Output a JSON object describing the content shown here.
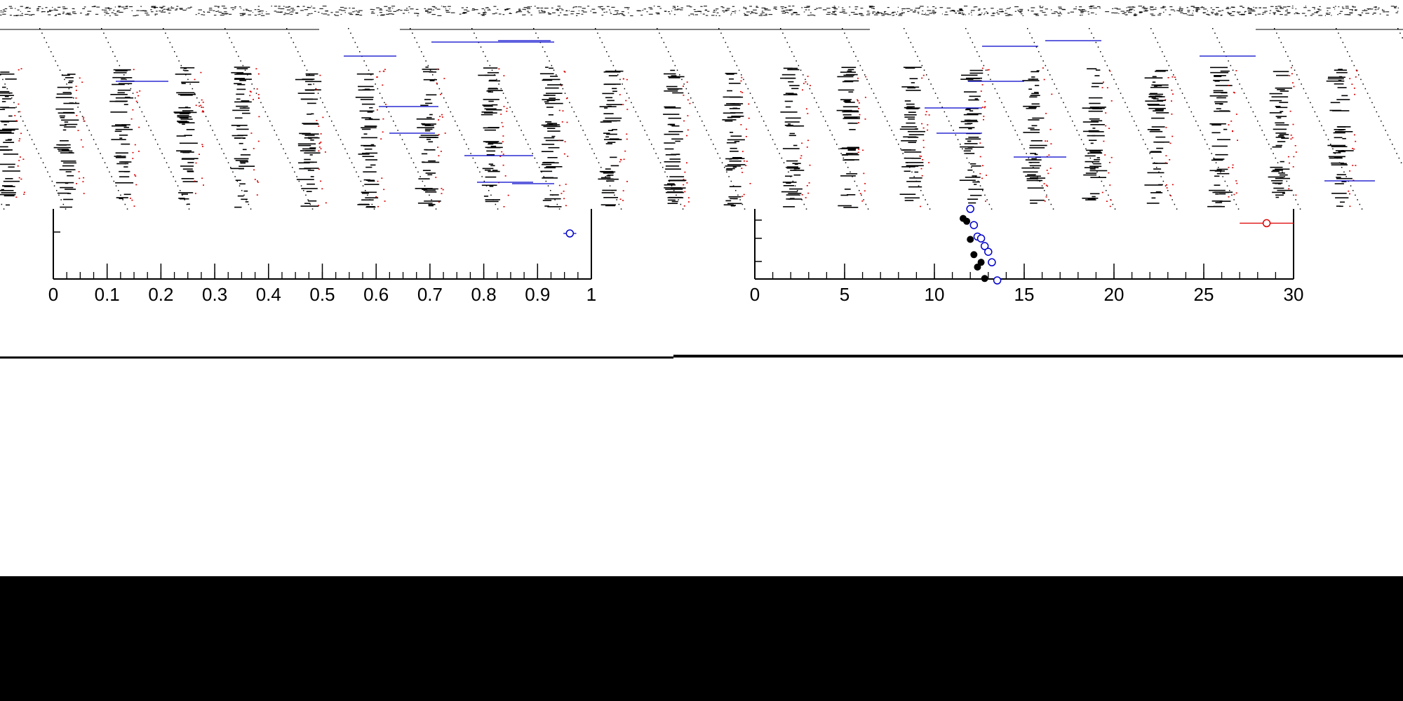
{
  "colors": {
    "background": "#ffffff",
    "frame": "#000000",
    "series_black": "#000000",
    "series_blue": "#0000cc",
    "series_red": "#dd0000",
    "bottom_band": "#000000"
  },
  "chart_data": [
    {
      "type": "scatter",
      "title": "",
      "xlabel": "",
      "ylabel": "",
      "xlim": [
        0,
        1
      ],
      "x_ticks": [
        "0",
        "0.1",
        "0.2",
        "0.3",
        "0.4",
        "0.5",
        "0.6",
        "0.7",
        "0.8",
        "0.9",
        "1"
      ],
      "x_tick_values": [
        0,
        0.1,
        0.2,
        0.3,
        0.4,
        0.5,
        0.6,
        0.7,
        0.8,
        0.9,
        1
      ],
      "minor_tick_step": 0.025,
      "grid": false,
      "legend": "none",
      "series": [
        {
          "marker": "open-circle",
          "color": "#0000cc",
          "points": [
            {
              "x": 0.96,
              "xerr": 0.012,
              "row": 2
            }
          ]
        }
      ]
    },
    {
      "type": "scatter",
      "title": "",
      "xlabel": "",
      "ylabel": "",
      "xlim": [
        0,
        30
      ],
      "x_ticks": [
        "0",
        "5",
        "10",
        "15",
        "20",
        "25",
        "30"
      ],
      "x_tick_values": [
        0,
        5,
        10,
        15,
        20,
        25,
        30
      ],
      "minor_tick_step": 1,
      "grid": false,
      "legend": "none",
      "series": [
        {
          "marker": "filled-circle",
          "color": "#000000",
          "points": [
            {
              "x": 11.6,
              "row": 1
            },
            {
              "x": 11.8,
              "row": 1.3
            },
            {
              "x": 12.0,
              "row": 3.2
            },
            {
              "x": 12.2,
              "row": 4.8
            },
            {
              "x": 12.4,
              "row": 6.1
            },
            {
              "x": 12.6,
              "row": 5.6
            },
            {
              "x": 12.8,
              "row": 7.3
            }
          ]
        },
        {
          "marker": "open-circle",
          "color": "#0000cc",
          "points": [
            {
              "x": 12.0,
              "row": 0
            },
            {
              "x": 12.2,
              "row": 1.7
            },
            {
              "x": 12.4,
              "row": 2.9
            },
            {
              "x": 12.6,
              "row": 3.1
            },
            {
              "x": 12.8,
              "row": 3.9
            },
            {
              "x": 13.0,
              "row": 4.5
            },
            {
              "x": 13.2,
              "row": 5.6
            },
            {
              "x": 13.5,
              "row": 7.5
            }
          ]
        },
        {
          "marker": "open-circle",
          "color": "#dd0000",
          "points": [
            {
              "x": 28.5,
              "xerr": 1.5,
              "row": 1.5
            }
          ]
        }
      ]
    }
  ]
}
